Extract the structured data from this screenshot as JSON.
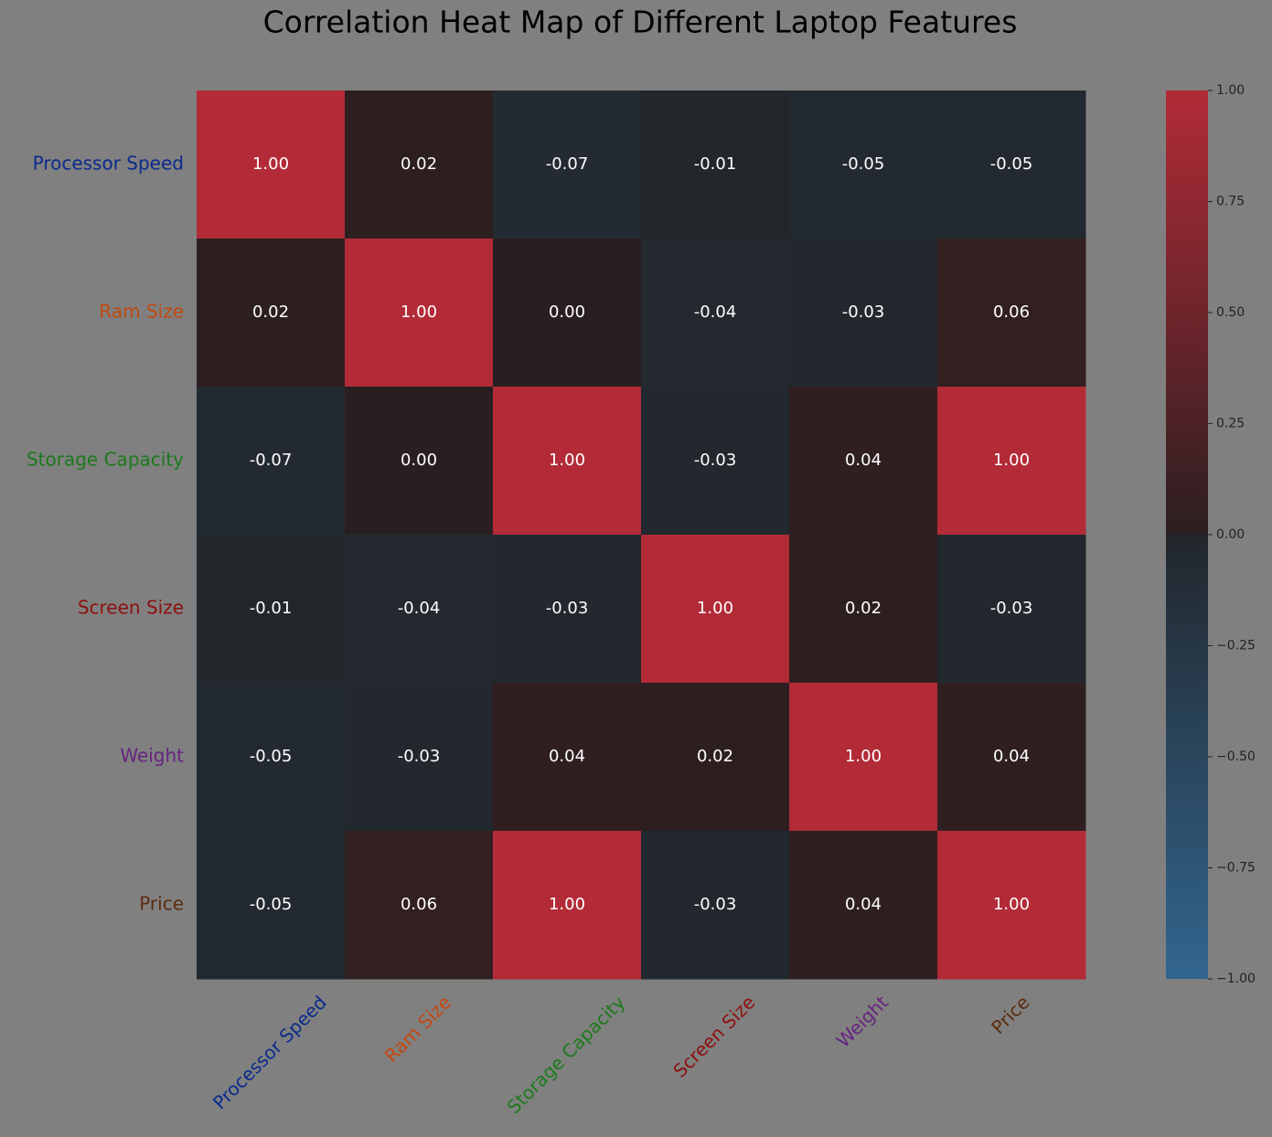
{
  "chart_data": {
    "type": "heatmap",
    "title": "Correlation Heat Map of Different Laptop Features",
    "categories": [
      "Processor Speed",
      "Ram Size",
      "Storage Capacity",
      "Screen Size",
      "Weight",
      "Price"
    ],
    "label_colors": [
      "#0b2a8c",
      "#c2480f",
      "#1c7a1c",
      "#8e0f0f",
      "#66247f",
      "#5c2c0f"
    ],
    "values": [
      [
        1.0,
        0.02,
        -0.07,
        -0.01,
        -0.05,
        -0.05
      ],
      [
        0.02,
        1.0,
        0.0,
        -0.04,
        -0.03,
        0.06
      ],
      [
        -0.07,
        0.0,
        1.0,
        -0.03,
        0.04,
        1.0
      ],
      [
        -0.01,
        -0.04,
        -0.03,
        1.0,
        0.02,
        -0.03
      ],
      [
        -0.05,
        -0.03,
        0.04,
        0.02,
        1.0,
        0.04
      ],
      [
        -0.05,
        0.06,
        1.0,
        -0.03,
        0.04,
        1.0
      ]
    ],
    "value_labels": [
      [
        "1.00",
        "0.02",
        "-0.07",
        "-0.01",
        "-0.05",
        "-0.05"
      ],
      [
        "0.02",
        "1.00",
        "0.00",
        "-0.04",
        "-0.03",
        "0.06"
      ],
      [
        "-0.07",
        "0.00",
        "1.00",
        "-0.03",
        "0.04",
        "1.00"
      ],
      [
        "-0.01",
        "-0.04",
        "-0.03",
        "1.00",
        "0.02",
        "-0.03"
      ],
      [
        "-0.05",
        "-0.03",
        "0.04",
        "0.02",
        "1.00",
        "0.04"
      ],
      [
        "-0.05",
        "0.06",
        "1.00",
        "-0.03",
        "0.04",
        "1.00"
      ]
    ],
    "colormap": [
      "#32668f",
      "#22262b",
      "#2a1f20",
      "#b22b37"
    ],
    "clim": [
      -1,
      1
    ],
    "cticks": [
      {
        "value": -1,
        "label": "−1.00"
      },
      {
        "value": -0.75,
        "label": "−0.75"
      },
      {
        "value": -0.5,
        "label": "−0.50"
      },
      {
        "value": -0.25,
        "label": "−0.25"
      },
      {
        "value": 0,
        "label": "0.00"
      },
      {
        "value": 0.25,
        "label": "0.25"
      },
      {
        "value": 0.5,
        "label": "0.50"
      },
      {
        "value": 0.75,
        "label": "0.75"
      },
      {
        "value": 1,
        "label": "1.00"
      }
    ]
  }
}
